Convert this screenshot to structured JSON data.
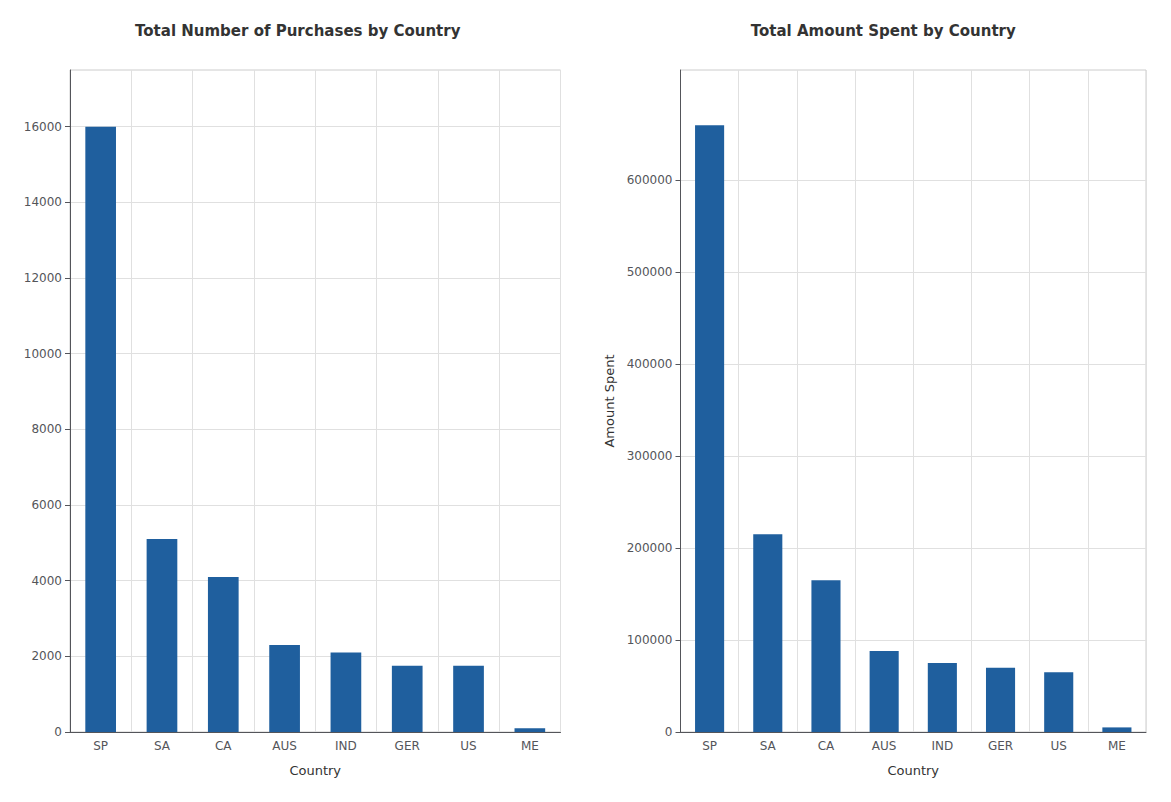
{
  "chart_data": [
    {
      "type": "bar",
      "title": "Total Number of Purchases by Country",
      "xlabel": "Country",
      "categories": [
        "SP",
        "SA",
        "CA",
        "AUS",
        "IND",
        "GER",
        "US",
        "ME"
      ],
      "values": [
        16000,
        5100,
        4100,
        2300,
        2100,
        1750,
        1750,
        100
      ],
      "color": "#1f5f9e",
      "ylim": [
        0,
        17500
      ],
      "yticks": [
        0,
        2000,
        4000,
        6000,
        8000,
        10000,
        12000,
        14000,
        16000
      ],
      "grid": true
    },
    {
      "type": "bar",
      "title": "Total Amount Spent by Country",
      "xlabel": "Country",
      "ylabel": "Amount Spent",
      "categories": [
        "SP",
        "SA",
        "CA",
        "AUS",
        "IND",
        "GER",
        "US",
        "ME"
      ],
      "values": [
        660000,
        215000,
        165000,
        88000,
        75000,
        70000,
        65000,
        5000
      ],
      "color": "#1f5f9e",
      "ylim": [
        0,
        720000
      ],
      "yticks": [
        0,
        100000,
        200000,
        300000,
        400000,
        500000,
        600000
      ],
      "grid": true
    }
  ]
}
